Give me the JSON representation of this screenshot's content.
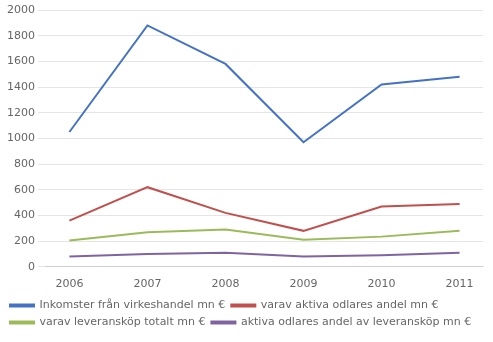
{
  "chart_data": {
    "type": "line",
    "x": [
      2006,
      2007,
      2008,
      2009,
      2010,
      2011
    ],
    "series": [
      {
        "name": "Inkomster från virkeshandel mn €",
        "color": "#4472c4",
        "values": [
          1050,
          1880,
          1580,
          970,
          1420,
          1480
        ]
      },
      {
        "name": "varav aktiva odlares andel mn €",
        "color": "#c0504d",
        "values": [
          360,
          620,
          420,
          280,
          470,
          490
        ]
      },
      {
        "name": "varav leveransköp totalt mn €",
        "color": "#9bbb59",
        "values": [
          205,
          270,
          290,
          210,
          235,
          280
        ]
      },
      {
        "name": "aktiva odlares andel av leveransköp mn €",
        "color": "#8064a2",
        "values": [
          80,
          100,
          110,
          80,
          90,
          110
        ]
      }
    ],
    "xlim": [
      2005.7,
      2011.3
    ],
    "xticks": [
      2006,
      2007,
      2008,
      2009,
      2010,
      2011
    ],
    "ylim": [
      0,
      2000
    ],
    "yticks": [
      0,
      200,
      400,
      600,
      800,
      1000,
      1200,
      1400,
      1600,
      1800,
      2000
    ],
    "grid": "y",
    "legend": "bottom"
  }
}
